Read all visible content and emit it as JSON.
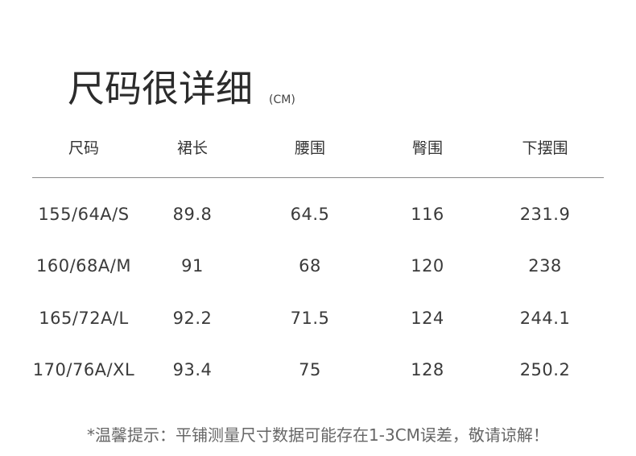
{
  "title": "尺码很详细",
  "unit": "(CM)",
  "headers": [
    "尺码",
    "裙长",
    "腰围",
    "臀围",
    "下摆围"
  ],
  "rows": [
    [
      "155/64A/S",
      "89.8",
      "64.5",
      "116",
      "231.9"
    ],
    [
      "160/68A/M",
      "91",
      "68",
      "120",
      "238"
    ],
    [
      "165/72A/L",
      "92.2",
      "71.5",
      "124",
      "244.1"
    ],
    [
      "170/76A/XL",
      "93.4",
      "75",
      "128",
      "250.2"
    ]
  ],
  "note": "*温馨提示：平铺测量尺寸数据可能存在1-3CM误差，敬请谅解！"
}
